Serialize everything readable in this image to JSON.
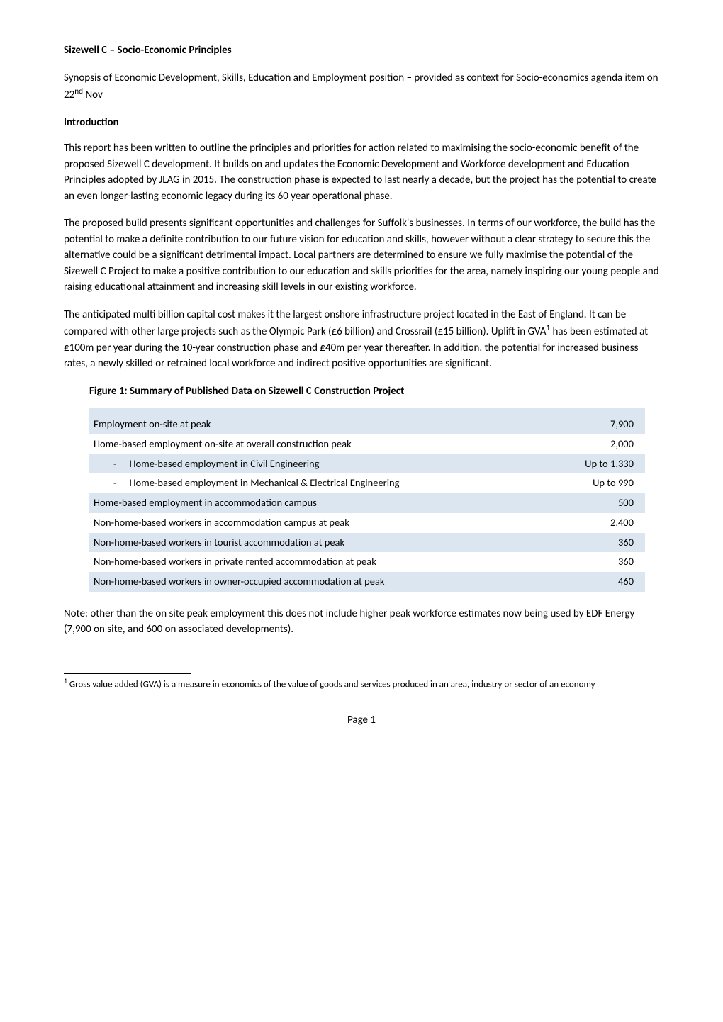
{
  "document": {
    "title": "Sizewell C – Socio-Economic Principles",
    "synopsis": "Synopsis of Economic Development, Skills, Education and Employment position – provided as context for Socio-economics agenda item on 22",
    "synopsis_sup": "nd",
    "synopsis_tail": " Nov",
    "intro_heading": "Introduction",
    "para1": "This report has been written to outline the principles and priorities for action related to maximising the socio-economic benefit of the proposed Sizewell C development.  It builds on and updates the Economic Development and Workforce development and Education Principles adopted by JLAG in 2015.  The construction phase is expected to last nearly a decade, but the project has the potential to create an even longer-lasting economic legacy during its 60 year operational phase.",
    "para2": "The proposed build presents significant opportunities and challenges for Suffolk's businesses. In terms of our workforce, the build has the potential to make a definite contribution to our future vision for education and skills, however without a clear strategy to secure this the alternative could be a significant detrimental impact. Local partners are determined to ensure we fully maximise the potential of the Sizewell C Project to make a positive contribution to our education and skills priorities for the area, namely inspiring our young people and raising educational attainment and increasing skill levels in our existing workforce.",
    "para3_a": "The anticipated multi billion capital cost makes it the largest onshore infrastructure project located in the East of England. It can be compared with other large projects such as the Olympic Park (£6 billion) and Crossrail (£15 billion). Uplift in GVA",
    "para3_sup": "1",
    "para3_b": " has been estimated at £100m per year during the 10-year construction phase and £40m per year thereafter. In addition, the potential for increased business rates, a newly skilled or retrained local workforce and indirect positive opportunities are significant.",
    "figure_title": "Figure 1: Summary of Published Data on Sizewell C Construction Project",
    "note": "Note: other than the on site peak employment this does not include higher peak workforce estimates now being used by EDF Energy (7,900 on site, and 600 on associated developments).",
    "footnote_marker": "1",
    "footnote_text": " Gross value added (GVA) is a measure in economics of the value of goods and services produced in an area, industry or sector of an economy",
    "page_number": "Page 1"
  },
  "table": {
    "background_shaded": "#dce6f1",
    "background_plain": "#ffffff",
    "rows": [
      {
        "label": "Employment on-site at peak",
        "value": "7,900",
        "indented": false
      },
      {
        "label": "Home-based employment on-site at overall construction peak",
        "value": "2,000",
        "indented": false
      },
      {
        "label": "Home-based employment in Civil Engineering",
        "value": "Up to 1,330",
        "indented": true
      },
      {
        "label": "Home-based employment in Mechanical & Electrical Engineering",
        "value": "Up to 990",
        "indented": true
      },
      {
        "label": "Home-based employment in accommodation campus",
        "value": "500",
        "indented": false
      },
      {
        "label": "Non-home-based workers in accommodation campus at peak",
        "value": "2,400",
        "indented": false
      },
      {
        "label": "Non-home-based workers in tourist accommodation at peak",
        "value": "360",
        "indented": false
      },
      {
        "label": "Non-home-based workers in private rented accommodation at peak",
        "value": "360",
        "indented": false
      },
      {
        "label": "Non-home-based workers in owner-occupied accommodation at peak",
        "value": "460",
        "indented": false
      }
    ],
    "shading_pattern": [
      "shaded",
      "plain",
      "shaded",
      "plain",
      "shaded",
      "plain",
      "shaded",
      "plain",
      "shaded"
    ]
  }
}
